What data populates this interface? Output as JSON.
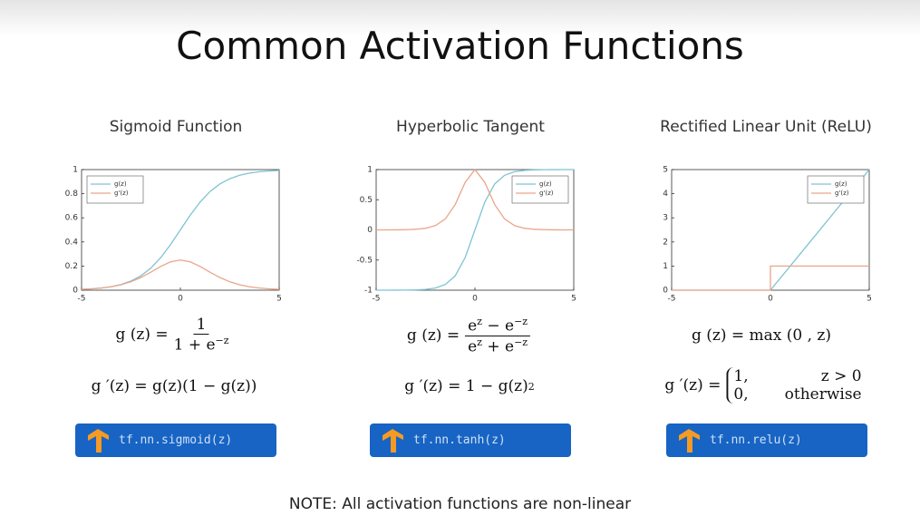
{
  "title": "Common Activation Functions",
  "note": "NOTE:  All activation functions are non-linear",
  "chart_data": [
    {
      "type": "line",
      "title": "Sigmoid Function",
      "legend": "upper left",
      "x": [
        -5,
        -4.5,
        -4,
        -3.5,
        -3,
        -2.5,
        -2,
        -1.5,
        -1,
        -0.5,
        0,
        0.5,
        1,
        1.5,
        2,
        2.5,
        3,
        3.5,
        4,
        4.5,
        5
      ],
      "xlim": [
        -5,
        5
      ],
      "xticks": [
        -5,
        0,
        5
      ],
      "ylim": [
        0,
        1
      ],
      "yticks": [
        0,
        0.2,
        0.4,
        0.6,
        0.8,
        1
      ],
      "series": [
        {
          "name": "g(z)",
          "color": "#7fc3d3",
          "values": [
            0.007,
            0.011,
            0.018,
            0.029,
            0.047,
            0.076,
            0.119,
            0.182,
            0.269,
            0.378,
            0.5,
            0.622,
            0.731,
            0.818,
            0.881,
            0.924,
            0.953,
            0.971,
            0.982,
            0.989,
            0.993
          ]
        },
        {
          "name": "g'(z)",
          "color": "#e9a58a",
          "values": [
            0.007,
            0.011,
            0.018,
            0.028,
            0.045,
            0.07,
            0.105,
            0.149,
            0.197,
            0.235,
            0.25,
            0.235,
            0.197,
            0.149,
            0.105,
            0.07,
            0.045,
            0.028,
            0.018,
            0.011,
            0.007
          ]
        }
      ]
    },
    {
      "type": "line",
      "title": "Hyperbolic Tangent",
      "legend": "upper right",
      "x": [
        -5,
        -4.5,
        -4,
        -3.5,
        -3,
        -2.5,
        -2,
        -1.5,
        -1,
        -0.5,
        0,
        0.5,
        1,
        1.5,
        2,
        2.5,
        3,
        3.5,
        4,
        4.5,
        5
      ],
      "xlim": [
        -5,
        5
      ],
      "xticks": [
        -5,
        0,
        5
      ],
      "ylim": [
        -1,
        1
      ],
      "yticks": [
        -1,
        -0.5,
        0,
        0.5,
        1
      ],
      "series": [
        {
          "name": "g(z)",
          "color": "#7fc3d3",
          "values": [
            -1,
            -1,
            -0.999,
            -0.998,
            -0.995,
            -0.987,
            -0.964,
            -0.905,
            -0.762,
            -0.462,
            0,
            0.462,
            0.762,
            0.905,
            0.964,
            0.987,
            0.995,
            0.998,
            0.999,
            1,
            1
          ]
        },
        {
          "name": "g'(z)",
          "color": "#e9a58a",
          "values": [
            0,
            0,
            0.001,
            0.004,
            0.01,
            0.027,
            0.071,
            0.181,
            0.42,
            0.786,
            1,
            0.786,
            0.42,
            0.181,
            0.071,
            0.027,
            0.01,
            0.004,
            0.001,
            0,
            0
          ]
        }
      ]
    },
    {
      "type": "line",
      "title": "Rectified Linear Unit (ReLU)",
      "legend": "upper right",
      "x": [
        -5,
        0,
        0,
        5
      ],
      "xlim": [
        -5,
        5
      ],
      "xticks": [
        -5,
        0,
        5
      ],
      "ylim": [
        0,
        5
      ],
      "yticks": [
        0,
        1,
        2,
        3,
        4,
        5
      ],
      "series": [
        {
          "name": "g(z)",
          "color": "#7fc3d3",
          "values": [
            0,
            0,
            0,
            5
          ]
        },
        {
          "name": "g'(z)",
          "color": "#e9a58a",
          "values": [
            0,
            0,
            1,
            1
          ]
        }
      ]
    }
  ],
  "formulas": {
    "sigmoid": {
      "lhs": "g (z) =",
      "num": "1",
      "den": "1 + e",
      "den_exp": "−z",
      "deriv": "g ′(z) =  g(z)(1 − g(z))"
    },
    "tanh": {
      "lhs": "g (z) =",
      "num": [
        "e",
        "z",
        " − e",
        "−z"
      ],
      "den": [
        "e",
        "z",
        " + e",
        "−z"
      ],
      "deriv": "g ′(z) = 1 − g(z)",
      "deriv_exp": "2"
    },
    "relu": {
      "lhs": "g (z) =  max (0 , z)",
      "deriv_lhs": "g ′(z) =",
      "cases": [
        [
          "1,",
          "z > 0"
        ],
        [
          "0,",
          "otherwise"
        ]
      ]
    }
  },
  "buttons": [
    "tf.nn.sigmoid(z)",
    "tf.nn.tanh(z)",
    "tf.nn.relu(z)"
  ]
}
